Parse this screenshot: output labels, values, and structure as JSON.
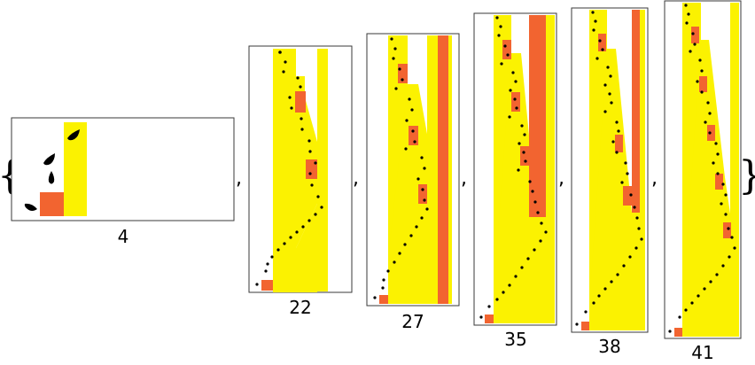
{
  "open_brace": "{",
  "close_brace": "}",
  "separator": ",",
  "colors": {
    "yellow": "#fbf201",
    "orange": "#f26430",
    "frame": "#3a3a3a",
    "ink": "#000000"
  },
  "panels": [
    {
      "label": "4"
    },
    {
      "label": "22"
    },
    {
      "label": "27"
    },
    {
      "label": "35"
    },
    {
      "label": "38"
    },
    {
      "label": "41"
    }
  ]
}
